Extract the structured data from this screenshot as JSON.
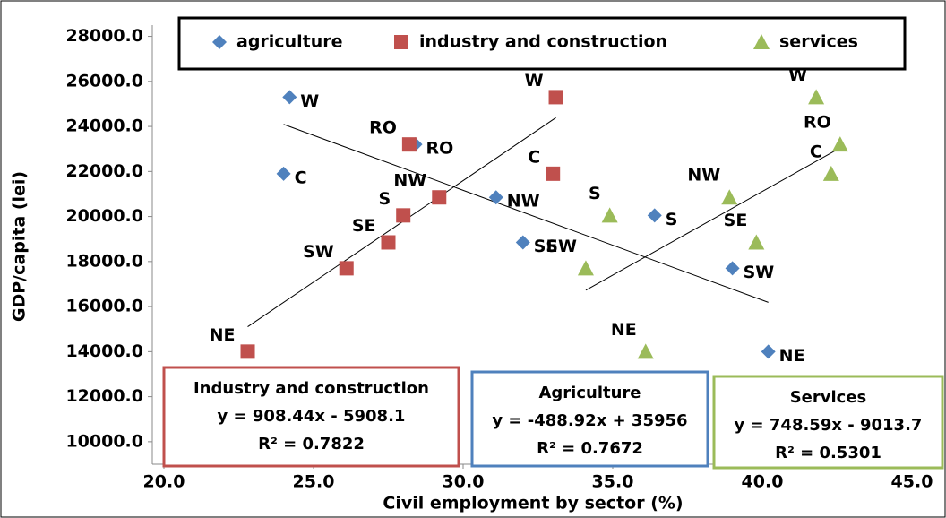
{
  "chart_data": {
    "type": "scatter",
    "x_label": "Civil employment by sector (%)",
    "y_label": "GDP/capita (lei)",
    "xlim": [
      20,
      45
    ],
    "ylim": [
      9000,
      28500
    ],
    "xticks": [
      {
        "value": 20,
        "label": "20.0"
      },
      {
        "value": 25,
        "label": "25.0"
      },
      {
        "value": 30,
        "label": "30.0"
      },
      {
        "value": 35,
        "label": "35.0"
      },
      {
        "value": 40,
        "label": "40.0"
      },
      {
        "value": 45,
        "label": "45.0"
      }
    ],
    "yticks": [
      {
        "value": 10000,
        "label": "10000.0"
      },
      {
        "value": 12000,
        "label": "12000.0"
      },
      {
        "value": 14000,
        "label": "14000.0"
      },
      {
        "value": 16000,
        "label": "16000.0"
      },
      {
        "value": 18000,
        "label": "18000.0"
      },
      {
        "value": 20000,
        "label": "20000.0"
      },
      {
        "value": 22000,
        "label": "22000.0"
      },
      {
        "value": 24000,
        "label": "24000.0"
      },
      {
        "value": 26000,
        "label": "26000.0"
      },
      {
        "value": 28000,
        "label": "28000.0"
      }
    ],
    "grid": false,
    "legend": "top",
    "series": [
      {
        "name": "agriculture",
        "color": "#4f81bd",
        "marker": "diamond",
        "point_labels": [
          "W",
          "C",
          "RO",
          "NW",
          "SE",
          "S",
          "SW",
          "NE"
        ],
        "x": [
          24.2,
          24.0,
          28.4,
          31.1,
          32.0,
          36.4,
          39.0,
          40.2
        ],
        "values": [
          25300,
          21900,
          23200,
          20850,
          18850,
          20050,
          17700,
          14000
        ],
        "trendline": {
          "name": "Agriculture",
          "equation": "y = -488.92x + 35956",
          "r_squared": "R² = 0.7672"
        }
      },
      {
        "name": "industry and construction",
        "color": "#c0504d",
        "marker": "square",
        "point_labels": [
          "W",
          "RO",
          "C",
          "NW",
          "S",
          "SE",
          "SW",
          "NE"
        ],
        "x": [
          33.1,
          28.2,
          33.0,
          29.2,
          28.0,
          27.5,
          26.1,
          22.8
        ],
        "values": [
          25300,
          23200,
          21900,
          20850,
          20050,
          18850,
          17700,
          14000
        ],
        "trendline": {
          "name": "Industry and construction",
          "equation": "y = 908.44x - 5908.1",
          "r_squared": "R² = 0.7822"
        }
      },
      {
        "name": "services",
        "color": "#9bbb59",
        "marker": "triangle",
        "point_labels": [
          "W",
          "RO",
          "C",
          "NW",
          "S",
          "SE",
          "SW",
          "NE"
        ],
        "x": [
          41.8,
          42.6,
          42.3,
          38.9,
          34.9,
          39.8,
          34.1,
          36.1
        ],
        "values": [
          25300,
          23200,
          21900,
          20850,
          20050,
          18850,
          17700,
          14000
        ],
        "trendline": {
          "name": "Services",
          "equation": "y = 748.59x - 9013.7",
          "r_squared": "R² = 0.5301"
        }
      }
    ]
  }
}
